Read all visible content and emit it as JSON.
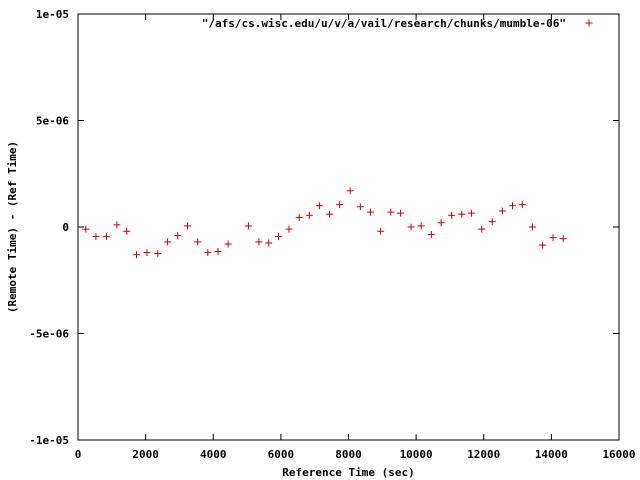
{
  "chart_data": {
    "type": "scatter",
    "xlabel": "Reference Time (sec)",
    "ylabel": "(Remote Time) - (Ref Time)",
    "xlim": [
      0,
      16000
    ],
    "ylim": [
      -1e-05,
      1e-05
    ],
    "xticks": [
      {
        "value": 0,
        "label": "0"
      },
      {
        "value": 2000,
        "label": "2000"
      },
      {
        "value": 4000,
        "label": "4000"
      },
      {
        "value": 6000,
        "label": "6000"
      },
      {
        "value": 8000,
        "label": "8000"
      },
      {
        "value": 10000,
        "label": "10000"
      },
      {
        "value": 12000,
        "label": "12000"
      },
      {
        "value": 14000,
        "label": "14000"
      },
      {
        "value": 16000,
        "label": "16000"
      }
    ],
    "yticks": [
      {
        "value": 1e-05,
        "label": "1e-05"
      },
      {
        "value": 5e-06,
        "label": "5e-06"
      },
      {
        "value": 0,
        "label": "0"
      },
      {
        "value": -5e-06,
        "label": "-5e-06"
      },
      {
        "value": -1e-05,
        "label": "-1e-05"
      }
    ],
    "grid": false,
    "legend_position": "top-right",
    "marker": "+",
    "series": [
      {
        "name": "\"/afs/cs.wisc.edu/u/v/a/vail/research/chunks/mumble-06\"",
        "color": "#cc0000",
        "x": [
          230,
          530,
          840,
          1150,
          1440,
          1730,
          2040,
          2360,
          2650,
          2950,
          3240,
          3540,
          3840,
          4140,
          4440,
          5040,
          5350,
          5640,
          5930,
          6240,
          6540,
          6840,
          7140,
          7440,
          7740,
          8050,
          8350,
          8650,
          8950,
          9250,
          9540,
          9850,
          10150,
          10450,
          10740,
          11050,
          11350,
          11640,
          11940,
          12250,
          12550,
          12850,
          13140,
          13440,
          13740,
          14050,
          14350
        ],
        "y": [
          -1e-07,
          -4.5e-07,
          -4.5e-07,
          1e-07,
          -2e-07,
          -1.3e-06,
          -1.2e-06,
          -1.25e-06,
          -7e-07,
          -4e-07,
          5e-08,
          -7e-07,
          -1.2e-06,
          -1.15e-06,
          -8e-07,
          5e-08,
          -7e-07,
          -7.5e-07,
          -4.5e-07,
          -1e-07,
          4.5e-07,
          5.5e-07,
          1e-06,
          6e-07,
          1.05e-06,
          1.7e-06,
          9.5e-07,
          7e-07,
          -2e-07,
          7e-07,
          6.5e-07,
          0.0,
          5e-08,
          -3.5e-07,
          2e-07,
          5.5e-07,
          6e-07,
          6.5e-07,
          -1e-07,
          2.5e-07,
          7.5e-07,
          1e-06,
          1.05e-06,
          0.0,
          -8.5e-07,
          -5e-07,
          -5.5e-07
        ]
      }
    ]
  }
}
